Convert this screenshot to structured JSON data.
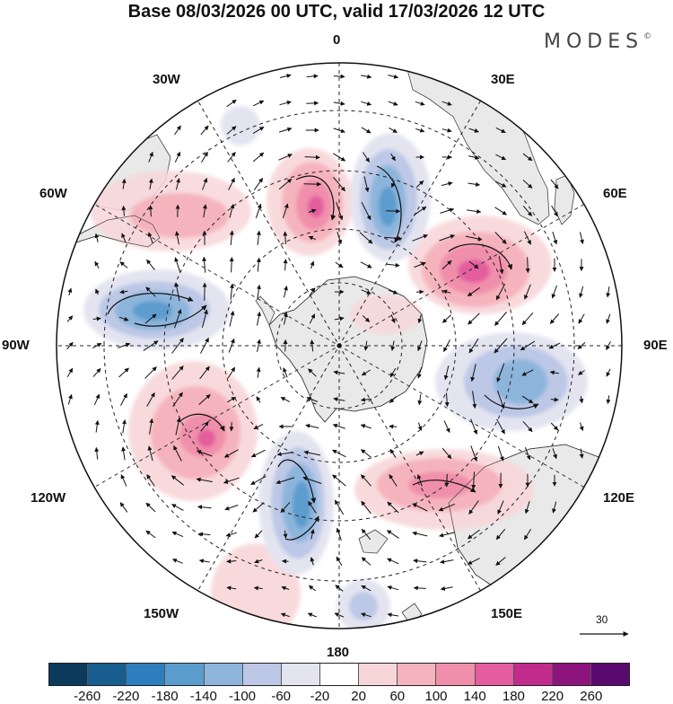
{
  "title": "Base 08/03/2026 00 UTC, valid 17/03/2026 12 UTC",
  "brand": "MODES",
  "brand_mark": "©",
  "meridian_labels": {
    "lon_0": "0",
    "lon_30e": "30E",
    "lon_60e": "60E",
    "lon_90e": "90E",
    "lon_120e": "120E",
    "lon_150e": "150E",
    "lon_180": "180",
    "lon_150w": "150W",
    "lon_120w": "120W",
    "lon_90w": "90W",
    "lon_60w": "60W",
    "lon_30w": "30W"
  },
  "reference_vector": {
    "value": "30"
  },
  "colorbar": {
    "colors": [
      "#0b3a5c",
      "#175e8f",
      "#2d7ebc",
      "#5b9cce",
      "#8db5dc",
      "#bcc8e6",
      "#e4e4f1",
      "#ffffff",
      "#f7d6d9",
      "#f5b4bd",
      "#f08fab",
      "#e45d9e",
      "#c12b8c",
      "#8e147d",
      "#5a0a6e"
    ],
    "ticks": [
      "-260",
      "-220",
      "-180",
      "-140",
      "-100",
      "-60",
      "-20",
      "20",
      "60",
      "100",
      "140",
      "180",
      "220",
      "260"
    ]
  },
  "colors": {
    "land": "#ebebeb",
    "positive_core": "#e45d9e",
    "negative_core": "#2d7ebc"
  }
}
